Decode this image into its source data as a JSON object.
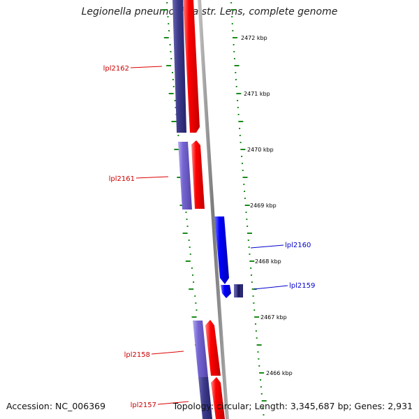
{
  "title": "Legionella pneumophila str. Lens, complete genome",
  "footer": {
    "accession": "Accession: NC_006369",
    "topology": "Topology: circular; Length: 3,345,687 bp; Genes: 2,931"
  },
  "colors": {
    "backbone": "#8c8c8c",
    "tick": "#1a8a1a",
    "forward_cds": "#ff0000",
    "forward_gene": "#7060cc",
    "reverse_cds": "#0000ff",
    "reverse_label": "#0000cc",
    "forward_label": "#cc0000"
  },
  "scale_labels": [
    "2472 kbp",
    "2471 kbp",
    "2470 kbp",
    "2469 kbp",
    "2468 kbp",
    "2467 kbp",
    "2466 kbp"
  ],
  "genes": [
    {
      "label": "lpl2162",
      "strand": "forward"
    },
    {
      "label": "lpl2161",
      "strand": "forward"
    },
    {
      "label": "lpl2160",
      "strand": "reverse"
    },
    {
      "label": "lpl2159",
      "strand": "reverse"
    },
    {
      "label": "lpl2158",
      "strand": "forward"
    },
    {
      "label": "lpl2157",
      "strand": "forward"
    }
  ]
}
